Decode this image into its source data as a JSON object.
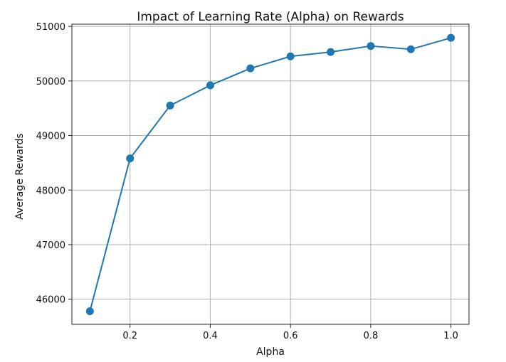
{
  "chart_data": {
    "type": "line",
    "title": "Impact of Learning Rate (Alpha) on Rewards",
    "xlabel": "Alpha",
    "ylabel": "Average Rewards",
    "x": [
      0.1,
      0.2,
      0.3,
      0.4,
      0.5,
      0.6,
      0.7,
      0.8,
      0.9,
      1.0
    ],
    "series": [
      {
        "values": [
          45780,
          48580,
          49550,
          49920,
          50230,
          50450,
          50530,
          50640,
          50580,
          50790
        ],
        "color": "#1f77b4",
        "marker": "circle"
      }
    ],
    "xlim": [
      0.055,
      1.045
    ],
    "ylim": [
      45540,
      51040
    ],
    "xticks": [
      0.2,
      0.4,
      0.6,
      0.8,
      1.0
    ],
    "xtick_labels": [
      "0.2",
      "0.4",
      "0.6",
      "0.8",
      "1.0"
    ],
    "yticks": [
      46000,
      47000,
      48000,
      49000,
      50000,
      51000
    ],
    "ytick_labels": [
      "46000",
      "47000",
      "48000",
      "49000",
      "50000",
      "51000"
    ],
    "grid": true,
    "legend": "none"
  }
}
